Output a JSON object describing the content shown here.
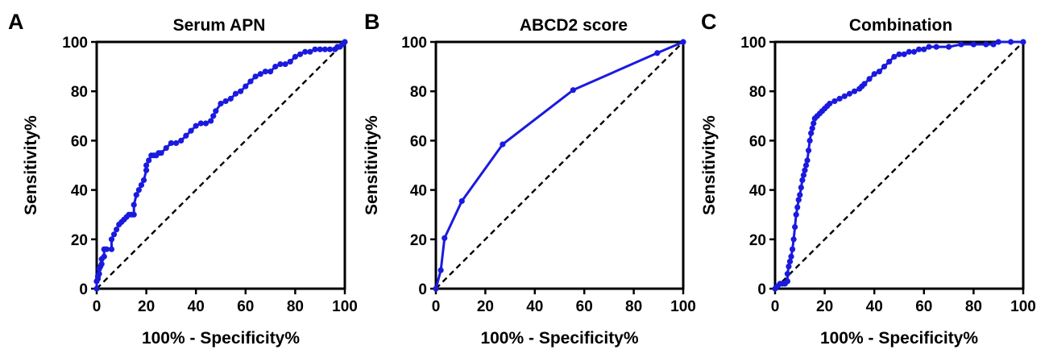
{
  "colors": {
    "series": "#1a1adf",
    "axis": "#000000",
    "reference": "#000000"
  },
  "chart_data": [
    {
      "type": "line",
      "panel_letter": "A",
      "title": "Serum APN",
      "xlabel": "100% - Specificity%",
      "ylabel": "Sensitivity%",
      "xlim": [
        0,
        100
      ],
      "ylim": [
        0,
        100
      ],
      "xticks": [
        0,
        20,
        40,
        60,
        80,
        100
      ],
      "yticks": [
        0,
        20,
        40,
        60,
        80,
        100
      ],
      "xtick_labels": [
        "0",
        "20",
        "40",
        "60",
        "80",
        "100"
      ],
      "ytick_labels": [
        "0",
        "20",
        "40",
        "60",
        "80",
        "100"
      ],
      "grid": false,
      "diagonal_reference": true,
      "series": [
        {
          "x": [
            0,
            0,
            0.5,
            0.5,
            1,
            1,
            1.5,
            2,
            2,
            3,
            3,
            4,
            6,
            6,
            7,
            8,
            9,
            10,
            11,
            12,
            13,
            14,
            15,
            15,
            16,
            17,
            18,
            19,
            20,
            20,
            21,
            22,
            23,
            24,
            25,
            26,
            28,
            30,
            32,
            34,
            36,
            38,
            40,
            42,
            44,
            46,
            47,
            48,
            50,
            52,
            54,
            56,
            58,
            60,
            62,
            64,
            66,
            68,
            70,
            72,
            74,
            76,
            78,
            80,
            82,
            84,
            86,
            88,
            90,
            92,
            94,
            96,
            97,
            98,
            99,
            100
          ],
          "y": [
            0,
            3,
            4,
            5,
            6,
            8,
            9,
            10,
            12,
            13,
            16,
            16,
            16,
            20,
            22,
            24,
            26,
            27,
            28,
            29,
            30,
            30,
            30,
            34,
            38,
            40,
            42,
            44,
            48,
            50,
            52,
            54,
            54,
            54,
            55,
            55,
            57,
            59,
            59,
            60,
            62,
            64,
            66,
            67,
            67,
            68,
            70,
            72,
            75,
            76,
            77,
            79,
            80,
            82,
            84,
            86,
            87,
            88,
            88,
            90,
            91,
            91,
            92,
            94,
            95,
            96,
            96,
            97,
            97,
            97,
            97,
            97,
            98,
            98,
            99,
            100
          ]
        }
      ]
    },
    {
      "type": "line",
      "panel_letter": "B",
      "title": "ABCD2 score",
      "xlabel": "100% - Specificity%",
      "ylabel": "Sensitivity%",
      "xlim": [
        0,
        100
      ],
      "ylim": [
        0,
        100
      ],
      "xticks": [
        0,
        20,
        40,
        60,
        80,
        100
      ],
      "yticks": [
        0,
        20,
        40,
        60,
        80,
        100
      ],
      "xtick_labels": [
        "0",
        "20",
        "40",
        "60",
        "80",
        "100"
      ],
      "ytick_labels": [
        "0",
        "20",
        "40",
        "60",
        "80",
        "100"
      ],
      "grid": false,
      "diagonal_reference": true,
      "series": [
        {
          "x": [
            0,
            2,
            3.5,
            10.5,
            27,
            55.5,
            89.5,
            100
          ],
          "y": [
            0,
            7.5,
            20.5,
            35.5,
            58.5,
            80.5,
            95.5,
            100
          ]
        }
      ]
    },
    {
      "type": "line",
      "panel_letter": "C",
      "title": "Combination",
      "xlabel": "100% - Specificity%",
      "ylabel": "Sensitivity%",
      "xlim": [
        0,
        100
      ],
      "ylim": [
        0,
        100
      ],
      "xticks": [
        0,
        20,
        40,
        60,
        80,
        100
      ],
      "yticks": [
        0,
        20,
        40,
        60,
        80,
        100
      ],
      "xtick_labels": [
        "0",
        "20",
        "40",
        "60",
        "80",
        "100"
      ],
      "ytick_labels": [
        "0",
        "20",
        "40",
        "60",
        "80",
        "100"
      ],
      "grid": false,
      "diagonal_reference": true,
      "series": [
        {
          "x": [
            0,
            1,
            2,
            3,
            4,
            5,
            5,
            5.5,
            6,
            6.5,
            7,
            7.5,
            8,
            8.5,
            9,
            9.5,
            10,
            10.5,
            11,
            11.5,
            12,
            12.5,
            13,
            13.5,
            14,
            14.5,
            15,
            15.5,
            16,
            17,
            18,
            19,
            20,
            21,
            22,
            24,
            26,
            28,
            30,
            32,
            34,
            35,
            36,
            38,
            40,
            42,
            44,
            46,
            48,
            50,
            52,
            54,
            56,
            58,
            60,
            62,
            65,
            70,
            75,
            80,
            85,
            88,
            90,
            95,
            100
          ],
          "y": [
            0,
            1,
            2,
            2,
            2,
            3,
            6,
            9,
            11,
            13,
            16,
            20,
            25,
            30,
            33,
            36,
            38,
            41,
            44,
            46,
            48,
            50,
            52,
            56,
            60,
            63,
            65,
            67,
            69,
            70,
            71,
            72,
            73,
            74,
            75,
            76,
            77,
            78,
            79,
            80,
            81,
            82,
            83,
            85,
            87,
            88,
            90,
            92,
            94,
            95,
            95,
            96,
            96,
            97,
            97,
            98,
            98,
            98,
            99,
            99,
            99,
            99,
            100,
            100,
            100
          ]
        }
      ]
    }
  ]
}
